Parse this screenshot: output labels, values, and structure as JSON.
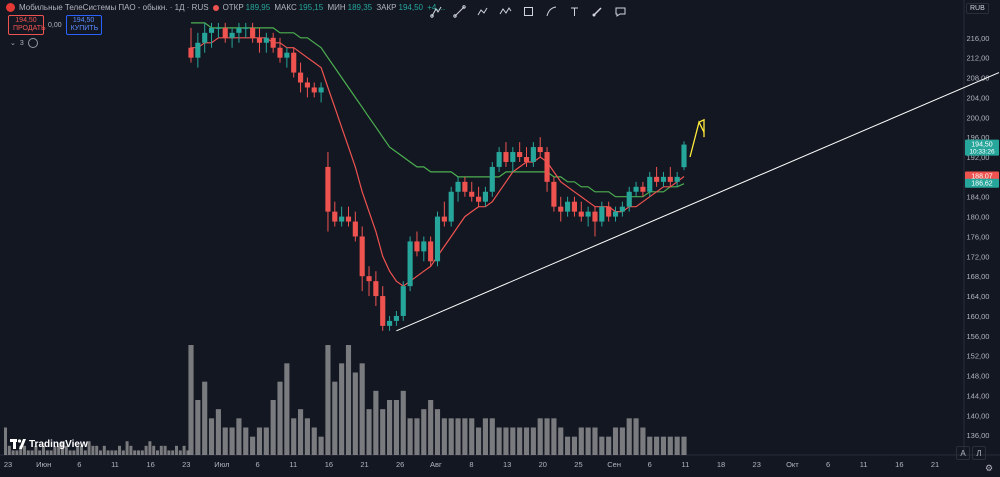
{
  "header": {
    "symbol_title": "Мобильные ТелеСистемы ПАО - обыкн. · 1Д · RUS",
    "open_label": "ОТКР",
    "open_value": "189,95",
    "high_label": "МАКС",
    "high_value": "195,15",
    "low_label": "МИН",
    "low_value": "189,35",
    "close_label": "ЗАКР",
    "close_value": "194,50",
    "change_value": "+4,..."
  },
  "trade": {
    "sell_price": "194,50",
    "sell_label": "ПРОДАТЬ",
    "spread": "0,00",
    "buy_price": "194,50",
    "buy_label": "КУПИТЬ"
  },
  "indicators": {
    "count": "3"
  },
  "toolbar": {
    "tools": [
      "pointer-icon",
      "trendline-icon",
      "brush-icon",
      "zigzag-icon",
      "rectangle-icon",
      "curve-icon",
      "text-icon",
      "brush-tool-icon",
      "comment-icon"
    ]
  },
  "currency": "RUB",
  "branding": {
    "name": "TradingView"
  },
  "corner_buttons": {
    "auto": "A",
    "log": "Л"
  },
  "colors": {
    "up": "#26a69a",
    "down": "#ef5350",
    "ma_fast": "#ef5350",
    "ma_slow": "#4caf50",
    "volume": "#9e9e9e",
    "trend": "#ffffff",
    "arrow": "#ffeb3b",
    "background": "#131722"
  },
  "chart_data": {
    "type": "candlestick",
    "y_axis_ticks": [
      "216,00",
      "212,00",
      "208,00",
      "204,00",
      "200,00",
      "196,00",
      "192,00",
      "188,00",
      "184,00",
      "180,00",
      "176,00",
      "172,00",
      "168,00",
      "164,00",
      "160,00",
      "156,00",
      "152,00",
      "148,00",
      "144,00",
      "140,00",
      "136,00"
    ],
    "y_tick_values": [
      216,
      212,
      208,
      204,
      200,
      196,
      192,
      188,
      184,
      180,
      176,
      172,
      168,
      164,
      160,
      156,
      152,
      148,
      144,
      140,
      136
    ],
    "x_axis_ticks": [
      "23",
      "Июн",
      "6",
      "11",
      "16",
      "23",
      "Июл",
      "6",
      "11",
      "16",
      "21",
      "26",
      "Авг",
      "8",
      "13",
      "20",
      "25",
      "Сен",
      "6",
      "11",
      "18",
      "23",
      "Окт",
      "6",
      "11",
      "16",
      "21"
    ],
    "price_labels": [
      {
        "text": "194,50",
        "sub": "10:33:26",
        "value": 194.5,
        "color": "#26a69a"
      },
      {
        "text": "188,07",
        "value": 188.07,
        "color": "#ef5350"
      },
      {
        "text": "186,62",
        "value": 186.62,
        "color": "#26a69a"
      }
    ],
    "candles": [
      {
        "o": 214,
        "h": 218,
        "l": 211,
        "c": 212
      },
      {
        "o": 212,
        "h": 217,
        "l": 210,
        "c": 215
      },
      {
        "o": 215,
        "h": 219,
        "l": 213,
        "c": 217
      },
      {
        "o": 217,
        "h": 219,
        "l": 214,
        "c": 218
      },
      {
        "o": 218,
        "h": 219,
        "l": 216,
        "c": 218
      },
      {
        "o": 218,
        "h": 219,
        "l": 215,
        "c": 216
      },
      {
        "o": 216,
        "h": 218,
        "l": 214,
        "c": 217
      },
      {
        "o": 217,
        "h": 219,
        "l": 215,
        "c": 218
      },
      {
        "o": 218,
        "h": 219,
        "l": 216,
        "c": 218
      },
      {
        "o": 218,
        "h": 219,
        "l": 215,
        "c": 216
      },
      {
        "o": 216,
        "h": 218,
        "l": 213,
        "c": 215
      },
      {
        "o": 215,
        "h": 217,
        "l": 213,
        "c": 216
      },
      {
        "o": 216,
        "h": 217,
        "l": 213,
        "c": 214
      },
      {
        "o": 214,
        "h": 216,
        "l": 211,
        "c": 212
      },
      {
        "o": 212,
        "h": 214,
        "l": 210,
        "c": 213
      },
      {
        "o": 213,
        "h": 214,
        "l": 208,
        "c": 209
      },
      {
        "o": 209,
        "h": 211,
        "l": 205,
        "c": 207
      },
      {
        "o": 207,
        "h": 208,
        "l": 204,
        "c": 206
      },
      {
        "o": 206,
        "h": 207,
        "l": 204,
        "c": 205
      },
      {
        "o": 205,
        "h": 207,
        "l": 203,
        "c": 206
      },
      {
        "o": 190,
        "h": 193,
        "l": 177,
        "c": 181
      },
      {
        "o": 181,
        "h": 183,
        "l": 178,
        "c": 179
      },
      {
        "o": 179,
        "h": 182,
        "l": 178,
        "c": 180
      },
      {
        "o": 180,
        "h": 182,
        "l": 178,
        "c": 179
      },
      {
        "o": 179,
        "h": 181,
        "l": 175,
        "c": 176
      },
      {
        "o": 176,
        "h": 178,
        "l": 165,
        "c": 168
      },
      {
        "o": 168,
        "h": 170,
        "l": 164,
        "c": 167
      },
      {
        "o": 167,
        "h": 169,
        "l": 162,
        "c": 164
      },
      {
        "o": 164,
        "h": 166,
        "l": 157,
        "c": 158
      },
      {
        "o": 158,
        "h": 160,
        "l": 157,
        "c": 159
      },
      {
        "o": 159,
        "h": 161,
        "l": 158,
        "c": 160
      },
      {
        "o": 160,
        "h": 167,
        "l": 159,
        "c": 166
      },
      {
        "o": 166,
        "h": 176,
        "l": 165,
        "c": 175
      },
      {
        "o": 175,
        "h": 177,
        "l": 172,
        "c": 173
      },
      {
        "o": 173,
        "h": 176,
        "l": 171,
        "c": 175
      },
      {
        "o": 175,
        "h": 176,
        "l": 170,
        "c": 171
      },
      {
        "o": 171,
        "h": 181,
        "l": 170,
        "c": 180
      },
      {
        "o": 180,
        "h": 183,
        "l": 178,
        "c": 179
      },
      {
        "o": 179,
        "h": 186,
        "l": 178,
        "c": 185
      },
      {
        "o": 185,
        "h": 188,
        "l": 183,
        "c": 187
      },
      {
        "o": 187,
        "h": 188,
        "l": 184,
        "c": 185
      },
      {
        "o": 185,
        "h": 187,
        "l": 183,
        "c": 184
      },
      {
        "o": 184,
        "h": 186,
        "l": 182,
        "c": 183
      },
      {
        "o": 183,
        "h": 186,
        "l": 182,
        "c": 185
      },
      {
        "o": 185,
        "h": 191,
        "l": 184,
        "c": 190
      },
      {
        "o": 190,
        "h": 194,
        "l": 189,
        "c": 193
      },
      {
        "o": 193,
        "h": 195,
        "l": 190,
        "c": 191
      },
      {
        "o": 191,
        "h": 194,
        "l": 189,
        "c": 193
      },
      {
        "o": 193,
        "h": 195,
        "l": 191,
        "c": 192
      },
      {
        "o": 192,
        "h": 194,
        "l": 190,
        "c": 191
      },
      {
        "o": 191,
        "h": 195,
        "l": 190,
        "c": 194
      },
      {
        "o": 194,
        "h": 196,
        "l": 192,
        "c": 193
      },
      {
        "o": 193,
        "h": 194,
        "l": 185,
        "c": 187
      },
      {
        "o": 187,
        "h": 188,
        "l": 181,
        "c": 182
      },
      {
        "o": 182,
        "h": 184,
        "l": 179,
        "c": 181
      },
      {
        "o": 181,
        "h": 184,
        "l": 180,
        "c": 183
      },
      {
        "o": 183,
        "h": 184,
        "l": 180,
        "c": 181
      },
      {
        "o": 181,
        "h": 183,
        "l": 179,
        "c": 180
      },
      {
        "o": 180,
        "h": 182,
        "l": 178,
        "c": 181
      },
      {
        "o": 181,
        "h": 182,
        "l": 176,
        "c": 179
      },
      {
        "o": 179,
        "h": 183,
        "l": 178,
        "c": 182
      },
      {
        "o": 182,
        "h": 183,
        "l": 179,
        "c": 180
      },
      {
        "o": 180,
        "h": 182,
        "l": 179,
        "c": 181
      },
      {
        "o": 181,
        "h": 183,
        "l": 180,
        "c": 182
      },
      {
        "o": 182,
        "h": 186,
        "l": 181,
        "c": 185
      },
      {
        "o": 185,
        "h": 187,
        "l": 184,
        "c": 186
      },
      {
        "o": 186,
        "h": 187,
        "l": 184,
        "c": 185
      },
      {
        "o": 185,
        "h": 189,
        "l": 184,
        "c": 188
      },
      {
        "o": 188,
        "h": 190,
        "l": 186,
        "c": 187
      },
      {
        "o": 187,
        "h": 189,
        "l": 186,
        "c": 188
      },
      {
        "o": 188,
        "h": 190,
        "l": 186,
        "c": 187
      },
      {
        "o": 187,
        "h": 189,
        "l": 186,
        "c": 188
      },
      {
        "o": 189.95,
        "h": 195.15,
        "l": 189.35,
        "c": 194.5
      }
    ],
    "ma_fast": [
      214,
      214,
      215,
      215,
      216,
      216,
      216,
      216,
      216,
      216,
      216,
      216,
      215,
      215,
      214,
      214,
      213,
      212,
      211,
      210,
      206,
      202,
      198,
      194,
      190,
      185,
      181,
      177,
      172,
      169,
      167,
      166,
      167,
      168,
      169,
      170,
      172,
      174,
      176,
      178,
      180,
      181,
      182,
      182,
      183,
      185,
      187,
      189,
      190,
      191,
      191,
      192,
      191,
      189,
      187,
      186,
      185,
      184,
      183,
      182,
      182,
      182,
      181,
      181,
      182,
      182,
      183,
      184,
      185,
      186,
      186,
      187,
      188.07
    ],
    "ma_slow": [
      219,
      219,
      219,
      218,
      218,
      218,
      218,
      218,
      218,
      218,
      218,
      218,
      218,
      217,
      217,
      217,
      216,
      216,
      215,
      214,
      212,
      210,
      208,
      206,
      204,
      202,
      200,
      198,
      196,
      194,
      193,
      192,
      191,
      190,
      190,
      189,
      189,
      189,
      189,
      188,
      188,
      188,
      188,
      188,
      188,
      188,
      189,
      189,
      189,
      189,
      189,
      189,
      189,
      188,
      188,
      187,
      187,
      186,
      186,
      185,
      185,
      185,
      184,
      184,
      184,
      184,
      184,
      185,
      185,
      185,
      186,
      186,
      186.62
    ],
    "volume": [
      3,
      2,
      2,
      2,
      1,
      1,
      1,
      1,
      1,
      2,
      1,
      1,
      1,
      1,
      3,
      3,
      2,
      2,
      1,
      1,
      2,
      3,
      3,
      4,
      4,
      3,
      2,
      3,
      2,
      3,
      3,
      3,
      2,
      2,
      3,
      3,
      2,
      2,
      2,
      2,
      1,
      1,
      1,
      1,
      1,
      1,
      1,
      1,
      1,
      1,
      1,
      1,
      1,
      1,
      1,
      1,
      1,
      1,
      1,
      1,
      1,
      1,
      1,
      1,
      1,
      1,
      1,
      1,
      2,
      2,
      2,
      2,
      1
    ],
    "volume_bars": [
      12,
      6,
      8,
      4,
      5,
      3,
      3,
      4,
      3,
      2,
      3,
      3,
      6,
      8,
      10,
      4,
      5,
      4,
      3,
      2,
      12,
      8,
      10,
      12,
      9,
      10,
      5,
      7,
      5,
      6,
      6,
      7,
      4,
      4,
      5,
      6,
      5,
      4,
      4,
      4,
      4,
      4,
      3,
      4,
      4,
      3,
      3,
      3,
      3,
      3,
      3,
      4,
      4,
      4,
      3,
      2,
      2,
      3,
      3,
      3,
      2,
      2,
      3,
      3,
      4,
      4,
      3,
      2,
      2,
      2,
      2,
      2,
      2
    ],
    "trendline": {
      "from": {
        "i": 30,
        "price": 157
      },
      "to": {
        "i": 999,
        "price": 209
      }
    },
    "ylim": [
      132,
      222
    ]
  }
}
